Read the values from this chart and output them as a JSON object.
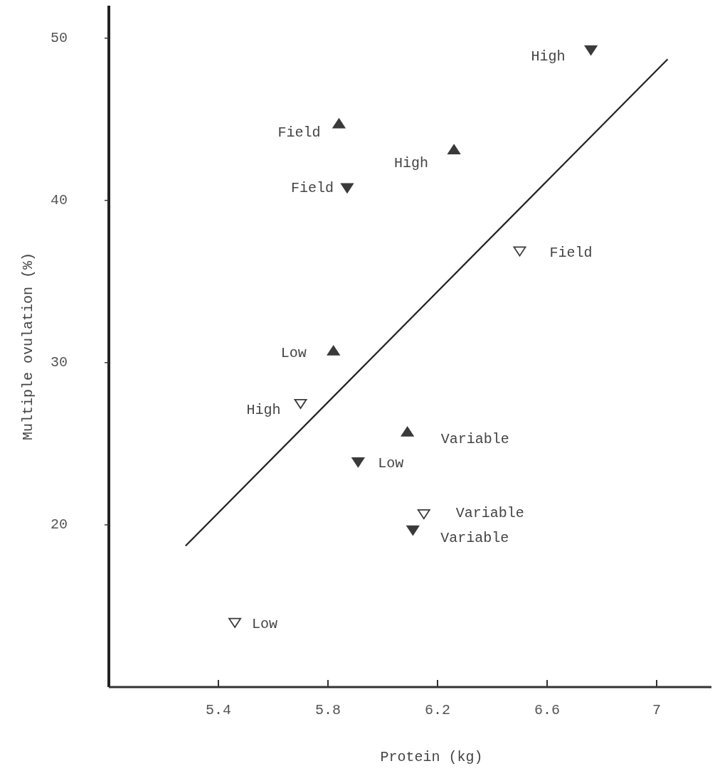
{
  "chart_data": {
    "type": "scatter",
    "xlabel": "Protein (kg)",
    "ylabel": "Multiple ovulation (%)",
    "xlim": [
      5.0,
      7.2
    ],
    "ylim": [
      10,
      52
    ],
    "xticks": [
      5.4,
      5.8,
      6.2,
      6.6,
      7.0
    ],
    "yticks": [
      20,
      30,
      40,
      50
    ],
    "grid": false,
    "series": [
      {
        "marker": "triangle",
        "color": "#3a3a3a",
        "x": [
          5.84,
          6.26,
          5.82,
          6.09
        ],
        "values": [
          44.7,
          43.1,
          30.7,
          25.7
        ]
      },
      {
        "marker": "triangle-down",
        "color": "#3a3a3a",
        "x": [
          6.76,
          5.87,
          5.91,
          6.11
        ],
        "values": [
          49.3,
          40.8,
          23.9,
          19.7
        ]
      },
      {
        "marker": "triangle-down-open",
        "color": "#3a3a3a",
        "x": [
          6.5,
          5.7,
          6.15,
          5.46
        ],
        "values": [
          36.9,
          27.5,
          20.7,
          14.0
        ]
      },
      {
        "type": "line",
        "marker": "none",
        "line_style": "solid",
        "color": "#222222",
        "x": [
          5.28,
          7.04
        ],
        "values": [
          18.7,
          48.7
        ]
      }
    ],
    "annotations": [
      {
        "text": "High",
        "x": 6.76,
        "y": 49.3
      },
      {
        "text": "Field",
        "x": 5.84,
        "y": 44.7
      },
      {
        "text": "High",
        "x": 6.26,
        "y": 43.1
      },
      {
        "text": "Field",
        "x": 5.87,
        "y": 40.8
      },
      {
        "text": "Field",
        "x": 6.5,
        "y": 36.9
      },
      {
        "text": "Low",
        "x": 5.82,
        "y": 30.7
      },
      {
        "text": "High",
        "x": 5.7,
        "y": 27.5
      },
      {
        "text": "Variable",
        "x": 6.09,
        "y": 25.7
      },
      {
        "text": "Low",
        "x": 5.91,
        "y": 23.9
      },
      {
        "text": "Variable",
        "x": 6.15,
        "y": 20.7
      },
      {
        "text": "Variable",
        "x": 6.11,
        "y": 19.7
      },
      {
        "text": "Low",
        "x": 5.46,
        "y": 14.0
      }
    ]
  }
}
